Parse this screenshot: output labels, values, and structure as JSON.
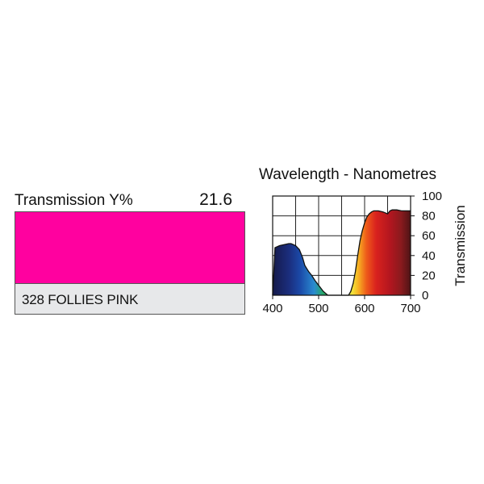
{
  "swatch": {
    "transmission_label": "Transmission Y%",
    "transmission_value": "21.6",
    "name": "328 FOLLIES PINK",
    "color": "#ff019f"
  },
  "chart_data": {
    "type": "area",
    "title": "Wavelength - Nanometres",
    "xlabel": "",
    "ylabel": "Transmission",
    "xlim": [
      400,
      700
    ],
    "ylim": [
      0,
      100
    ],
    "x_ticks": [
      "400",
      "500",
      "600",
      "700"
    ],
    "y_ticks": [
      "0",
      "20",
      "40",
      "60",
      "80",
      "100"
    ],
    "grid": true,
    "fill": "visible-spectrum gradient",
    "series": [
      {
        "x": [
          400,
          405,
          415,
          425,
          435,
          440,
          450,
          458,
          465,
          470,
          478,
          485,
          492,
          500,
          510,
          520,
          530,
          537,
          545,
          550,
          555,
          560,
          565,
          570,
          575,
          580,
          585,
          590,
          595,
          600,
          605,
          610,
          615,
          620,
          630,
          640,
          650,
          655,
          660,
          670,
          680,
          690,
          700
        ],
        "y": [
          0,
          48,
          50,
          51,
          52,
          52,
          50,
          46,
          38,
          30,
          24,
          20,
          15,
          10,
          4,
          0,
          0,
          0,
          0,
          0,
          0,
          0,
          0,
          4,
          12,
          24,
          40,
          55,
          65,
          73,
          79,
          82,
          84,
          85,
          85,
          84,
          82,
          85,
          86,
          86,
          85,
          85,
          85
        ]
      }
    ]
  }
}
